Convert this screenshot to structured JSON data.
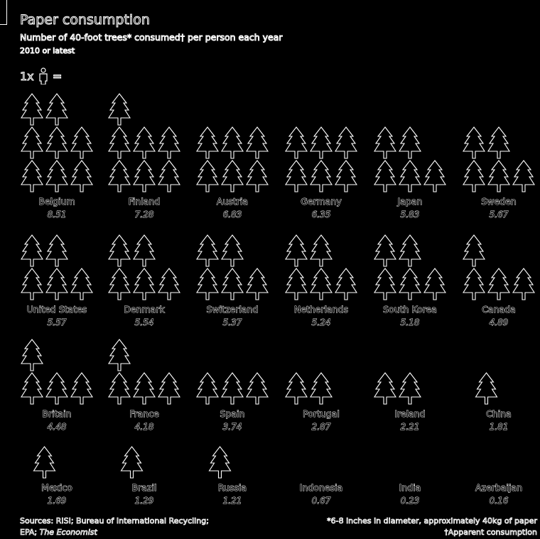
{
  "header": {
    "title": "Paper consumption",
    "subtitle": "Number of 40-foot trees* consumed† per person each year",
    "subtitle2": "2010 or latest"
  },
  "legend": {
    "label": "1x",
    "icon": "person-icon",
    "suffix": "="
  },
  "colors": {
    "background": "#000000",
    "stroke": "#ffffff"
  },
  "footer": {
    "sources_line1": "Sources: RISI; Bureau of International Recycling;",
    "sources_line2_prefix": "EPA; ",
    "sources_line2_italic": "The Economist",
    "note1": "*6-8 inches in diameter, approximately 40kg of paper",
    "note2": "†Apparent consumption"
  },
  "chart_data": {
    "type": "pictogram",
    "unit_icon": "tree-icon",
    "categories": [
      "Belgium",
      "Finland",
      "Austria",
      "Germany",
      "Japan",
      "Sweden",
      "United States",
      "Denmark",
      "Switzerland",
      "Netherlands",
      "South Korea",
      "Canada",
      "Britain",
      "France",
      "Spain",
      "Portugal",
      "Ireland",
      "China",
      "Mexico",
      "Brazil",
      "Russia",
      "Indonesia",
      "India",
      "Azerbaijan"
    ],
    "values": [
      8.51,
      7.28,
      6.83,
      6.35,
      5.83,
      5.67,
      5.57,
      5.54,
      5.37,
      5.24,
      5.18,
      4.89,
      4.48,
      4.18,
      3.74,
      2.87,
      2.21,
      1.81,
      1.69,
      1.29,
      1.21,
      0.67,
      0.23,
      0.16
    ],
    "labels": [
      "8.51",
      "7.28",
      "6.83",
      "6.35",
      "5.83",
      "5.67",
      "5.57",
      "5.54",
      "5.37",
      "5.24",
      "5.18",
      "4.89",
      "4.48",
      "4.18",
      "3.74",
      "2.87",
      "2.21",
      "1.81",
      "1.69",
      "1.29",
      "1.21",
      "0.67",
      "0.23",
      "0.16"
    ]
  }
}
